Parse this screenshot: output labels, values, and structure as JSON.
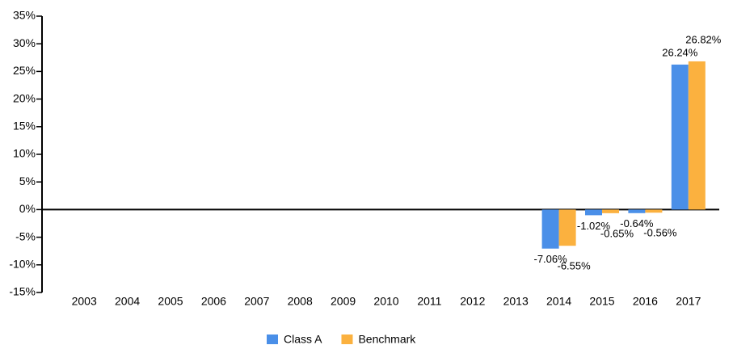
{
  "chart_data": {
    "type": "bar",
    "categories": [
      "2003",
      "2004",
      "2005",
      "2006",
      "2007",
      "2008",
      "2009",
      "2010",
      "2011",
      "2012",
      "2013",
      "2014",
      "2015",
      "2016",
      "2017"
    ],
    "series": [
      {
        "name": "Class A",
        "color": "#4a8fe8",
        "values": [
          null,
          null,
          null,
          null,
          null,
          null,
          null,
          null,
          null,
          null,
          null,
          -7.06,
          -1.02,
          -0.64,
          26.24
        ],
        "value_labels": [
          null,
          null,
          null,
          null,
          null,
          null,
          null,
          null,
          null,
          null,
          null,
          "-7.06%",
          "-1.02%",
          "-0.64%",
          "26.24%"
        ]
      },
      {
        "name": "Benchmark",
        "color": "#fbb13f",
        "values": [
          null,
          null,
          null,
          null,
          null,
          null,
          null,
          null,
          null,
          null,
          null,
          -6.55,
          -0.65,
          -0.56,
          26.82
        ],
        "value_labels": [
          null,
          null,
          null,
          null,
          null,
          null,
          null,
          null,
          null,
          null,
          null,
          "-6.55%",
          "-0.65%",
          "-0.56%",
          "26.82%"
        ]
      }
    ],
    "ylim": [
      -15,
      35
    ],
    "yticks": [
      {
        "value": -15,
        "label": "-15%"
      },
      {
        "value": -10,
        "label": "-10%"
      },
      {
        "value": -5,
        "label": "-5%"
      },
      {
        "value": 0,
        "label": "0%"
      },
      {
        "value": 5,
        "label": "5%"
      },
      {
        "value": 10,
        "label": "10%"
      },
      {
        "value": 15,
        "label": "15%"
      },
      {
        "value": 20,
        "label": "20%"
      },
      {
        "value": 25,
        "label": "25%"
      },
      {
        "value": 30,
        "label": "30%"
      },
      {
        "value": 35,
        "label": "35%"
      }
    ],
    "legend": "bottom"
  }
}
